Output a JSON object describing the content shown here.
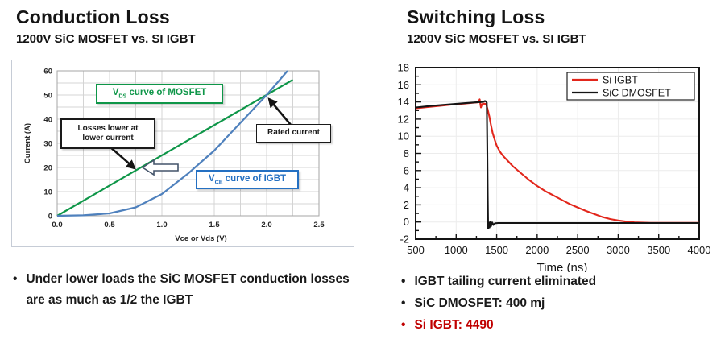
{
  "left": {
    "title": "Conduction Loss",
    "subtitle": "1200V SiC MOSFET vs. SI IGBT",
    "bullet": "Under lower loads the SiC MOSFET conduction losses are as much as 1/2 the IGBT",
    "annotations": {
      "mosfet": {
        "pre": "V",
        "sub": "DS",
        "post": " curve of MOSFET",
        "color": "#0E9648"
      },
      "igbt": {
        "pre": "V",
        "sub": "CE",
        "post": " curve of IGBT",
        "color": "#2470C2"
      },
      "losses": {
        "line1": "Losses lower at",
        "line2": "lower current",
        "color": "#1a1a1a"
      },
      "rated": {
        "text": "Rated current",
        "color": "#1a1a1a"
      }
    }
  },
  "right": {
    "title": "Switching Loss",
    "subtitle": "1200V SiC MOSFET vs. SI IGBT",
    "bullets": [
      {
        "text": "IGBT tailing current eliminated",
        "color": "#1a1a1a"
      },
      {
        "text": "SiC DMOSFET: 400 mj",
        "color": "#1a1a1a"
      },
      {
        "text": "Si IGBT: 4490",
        "color": "#C00000"
      }
    ]
  },
  "chart_data": [
    {
      "type": "line",
      "title": "Conduction Loss",
      "xlabel": "Vce or Vds (V)",
      "ylabel": "Current (A)",
      "xlim": [
        0,
        2.5
      ],
      "ylim": [
        0,
        60
      ],
      "xticks": [
        "0.0",
        "0.5",
        "1.0",
        "1.5",
        "2.0",
        "2.5"
      ],
      "yticks": [
        0,
        10,
        20,
        30,
        40,
        50,
        60
      ],
      "x_minor_step": 0.25,
      "y_minor_step": 5,
      "grid": true,
      "legend_position": "none",
      "series": [
        {
          "name": "VDS curve of MOSFET",
          "color": "#0E9648",
          "x": [
            0,
            2.25
          ],
          "y": [
            0,
            56.3
          ]
        },
        {
          "name": "VCE curve of IGBT",
          "color": "#4F81BD",
          "x": [
            0,
            0.25,
            0.5,
            0.75,
            1.0,
            1.25,
            1.5,
            1.75,
            2.0,
            2.1,
            2.2
          ],
          "y": [
            0,
            0.2,
            1,
            3.5,
            9,
            17.5,
            27,
            38.5,
            50,
            55,
            60
          ]
        }
      ],
      "annotations": [
        "VDS curve of MOSFET",
        "Losses lower at lower current",
        "Rated current"
      ]
    },
    {
      "type": "line",
      "title": "Switching Loss",
      "xlabel": "Time (ns)",
      "ylabel": "",
      "xlim": [
        500,
        4000
      ],
      "ylim": [
        -2,
        18
      ],
      "xticks": [
        500,
        1000,
        1500,
        2000,
        2500,
        3000,
        3500,
        4000
      ],
      "yticks": [
        -2,
        0,
        2,
        4,
        6,
        8,
        10,
        12,
        14,
        16,
        18
      ],
      "x_minor_step": 250,
      "y_minor_step": 1,
      "grid": true,
      "legend_position": "top-right",
      "series": [
        {
          "name": "Si IGBT",
          "color": "#E2261B",
          "x": [
            500,
            650,
            800,
            950,
            1100,
            1200,
            1270,
            1290,
            1305,
            1320,
            1345,
            1370,
            1390,
            1410,
            1430,
            1450,
            1475,
            1500,
            1540,
            1580,
            1640,
            1700,
            1800,
            1900,
            2000,
            2100,
            2200,
            2300,
            2400,
            2500,
            2600,
            2700,
            2800,
            2900,
            3000,
            3100,
            3200,
            3400,
            3700,
            4000
          ],
          "y": [
            13.25,
            13.4,
            13.55,
            13.7,
            13.8,
            13.9,
            13.95,
            14.3,
            13.35,
            13.75,
            13.8,
            13.75,
            13.1,
            12.3,
            11.3,
            10.4,
            9.6,
            8.9,
            8.2,
            7.7,
            7.1,
            6.5,
            5.7,
            4.9,
            4.2,
            3.6,
            3.1,
            2.6,
            2.1,
            1.7,
            1.3,
            0.95,
            0.6,
            0.35,
            0.18,
            0.05,
            -0.05,
            -0.1,
            -0.1,
            -0.1
          ]
        },
        {
          "name": "SiC DMOSFET",
          "color": "#141414",
          "x": [
            500,
            700,
            900,
            1100,
            1250,
            1330,
            1355,
            1370,
            1378,
            1385,
            1390,
            1395,
            1405,
            1412,
            1420,
            1430,
            1445,
            1460,
            1480,
            1520,
            2000,
            2500,
            3000,
            3500,
            4000
          ],
          "y": [
            13.35,
            13.55,
            13.7,
            13.85,
            13.95,
            14.0,
            14.1,
            14.05,
            13.9,
            8,
            3,
            -0.75,
            -0.1,
            -0.65,
            0.05,
            -0.5,
            -0.05,
            -0.35,
            -0.15,
            -0.12,
            -0.12,
            -0.12,
            -0.12,
            -0.12,
            -0.12
          ]
        }
      ]
    }
  ]
}
